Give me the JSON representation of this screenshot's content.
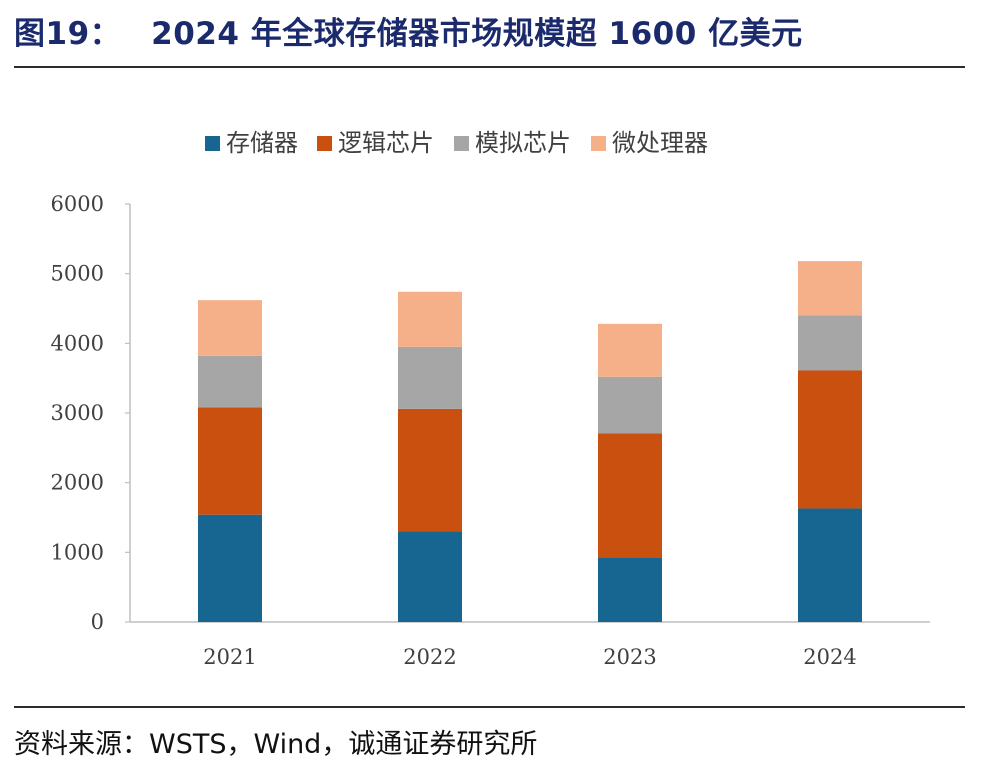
{
  "header": {
    "figure_number": "图19：",
    "title": "2024 年全球存储器市场规模超 1600 亿美元"
  },
  "footer": {
    "source": "资料来源：WSTS，Wind，诚通证券研究所"
  },
  "chart_data": {
    "type": "bar",
    "stacked": true,
    "categories": [
      "2021",
      "2022",
      "2023",
      "2024"
    ],
    "series": [
      {
        "name": "存储器",
        "color": "#176591",
        "values": [
          1540,
          1300,
          930,
          1630
        ]
      },
      {
        "name": "逻辑芯片",
        "color": "#c9500f",
        "values": [
          1540,
          1760,
          1780,
          1980
        ]
      },
      {
        "name": "模拟芯片",
        "color": "#a6a6a6",
        "values": [
          740,
          890,
          810,
          790
        ]
      },
      {
        "name": "微处理器",
        "color": "#f5b08a",
        "values": [
          800,
          790,
          760,
          780
        ]
      }
    ],
    "ylim": [
      0,
      6000
    ],
    "yticks": [
      0,
      1000,
      2000,
      3000,
      4000,
      5000,
      6000
    ],
    "legend_position": "top",
    "grid": false
  }
}
